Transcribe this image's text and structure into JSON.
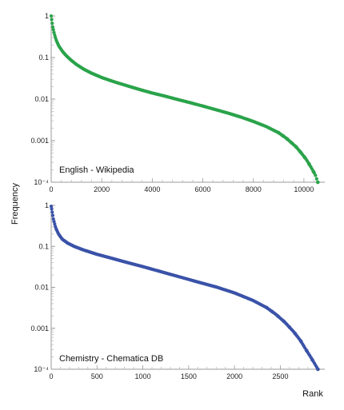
{
  "chart_data": [
    {
      "type": "scatter",
      "annotation": "English - Wikipedia",
      "ylabel": "Frequency",
      "xlabel": "Rank",
      "yscale": "log",
      "ylim": [
        0.0001,
        1
      ],
      "xlim": [
        0,
        10700
      ],
      "xticks": [
        0,
        2000,
        4000,
        6000,
        8000,
        10000
      ],
      "yticks": [
        "1",
        "0.1",
        "0.01",
        "0.001",
        "10⁻⁴"
      ],
      "grid": false,
      "color": "#2aa34a",
      "series": [
        {
          "points": [
            [
              0,
              1
            ],
            [
              20,
              0.8
            ],
            [
              60,
              0.55
            ],
            [
              120,
              0.38
            ],
            [
              200,
              0.26
            ],
            [
              300,
              0.19
            ],
            [
              450,
              0.14
            ],
            [
              600,
              0.11
            ],
            [
              800,
              0.085
            ],
            [
              1000,
              0.068
            ],
            [
              1300,
              0.052
            ],
            [
              1600,
              0.042
            ],
            [
              2000,
              0.033
            ],
            [
              2500,
              0.026
            ],
            [
              3000,
              0.021
            ],
            [
              3500,
              0.017
            ],
            [
              4000,
              0.014
            ],
            [
              4500,
              0.0118
            ],
            [
              5000,
              0.0098
            ],
            [
              5500,
              0.0082
            ],
            [
              6000,
              0.0068
            ],
            [
              6500,
              0.0056
            ],
            [
              7000,
              0.0046
            ],
            [
              7500,
              0.0037
            ],
            [
              8000,
              0.0029
            ],
            [
              8500,
              0.0022
            ],
            [
              9000,
              0.00155
            ],
            [
              9300,
              0.00115
            ],
            [
              9500,
              0.0009
            ],
            [
              9700,
              0.0007
            ],
            [
              9900,
              0.0005
            ],
            [
              10100,
              0.00035
            ],
            [
              10300,
              0.00022
            ],
            [
              10450,
              0.00015
            ],
            [
              10550,
              0.0001
            ]
          ]
        }
      ]
    },
    {
      "type": "scatter",
      "annotation": "Chemistry - Chematica DB",
      "ylabel": "Frequency",
      "xlabel": "Rank",
      "yscale": "log",
      "ylim": [
        0.0001,
        1
      ],
      "xlim": [
        0,
        2950
      ],
      "xticks": [
        0,
        500,
        1000,
        1500,
        2000,
        2500
      ],
      "yticks": [
        "1",
        "0.1",
        "0.01",
        "0.001",
        "10⁻⁴"
      ],
      "grid": false,
      "color": "#3a52a8",
      "series": [
        {
          "points": [
            [
              0,
              0.95
            ],
            [
              10,
              0.7
            ],
            [
              25,
              0.45
            ],
            [
              50,
              0.28
            ],
            [
              80,
              0.2
            ],
            [
              120,
              0.15
            ],
            [
              180,
              0.12
            ],
            [
              250,
              0.1
            ],
            [
              350,
              0.082
            ],
            [
              500,
              0.064
            ],
            [
              650,
              0.052
            ],
            [
              800,
              0.042
            ],
            [
              1000,
              0.032
            ],
            [
              1200,
              0.024
            ],
            [
              1400,
              0.018
            ],
            [
              1600,
              0.0135
            ],
            [
              1800,
              0.0102
            ],
            [
              2000,
              0.0073
            ],
            [
              2200,
              0.0048
            ],
            [
              2350,
              0.0032
            ],
            [
              2450,
              0.0022
            ],
            [
              2550,
              0.0014
            ],
            [
              2650,
              0.0008
            ],
            [
              2720,
              0.0005
            ],
            [
              2780,
              0.0003
            ],
            [
              2830,
              0.0002
            ],
            [
              2880,
              0.00013
            ],
            [
              2910,
              0.0001
            ]
          ]
        }
      ]
    }
  ],
  "shared_ylabel": "Frequency",
  "shared_xlabel": "Rank"
}
